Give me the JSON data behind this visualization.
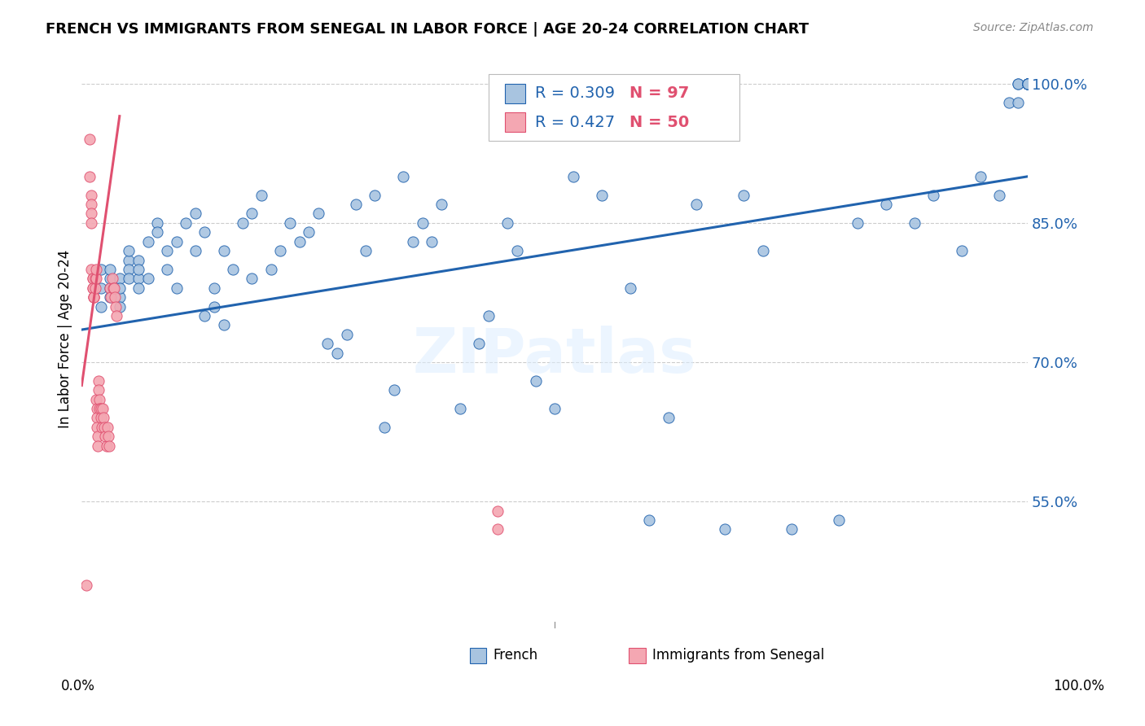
{
  "title": "FRENCH VS IMMIGRANTS FROM SENEGAL IN LABOR FORCE | AGE 20-24 CORRELATION CHART",
  "source": "Source: ZipAtlas.com",
  "ylabel": "In Labor Force | Age 20-24",
  "ytick_labels": [
    "100.0%",
    "85.0%",
    "70.0%",
    "55.0%"
  ],
  "ytick_values": [
    1.0,
    0.85,
    0.7,
    0.55
  ],
  "xlim": [
    0.0,
    1.0
  ],
  "ylim": [
    0.42,
    1.03
  ],
  "legend_blue_r": "0.309",
  "legend_blue_n": "97",
  "legend_pink_r": "0.427",
  "legend_pink_n": "50",
  "legend_blue_label": "French",
  "legend_pink_label": "Immigrants from Senegal",
  "blue_color": "#a8c4e0",
  "blue_edge_color": "#2163ae",
  "pink_color": "#f4a7b2",
  "pink_edge_color": "#e05070",
  "blue_line_color": "#2163ae",
  "pink_line_color": "#e05070",
  "blue_scatter_x": [
    0.02,
    0.02,
    0.02,
    0.03,
    0.03,
    0.03,
    0.03,
    0.04,
    0.04,
    0.04,
    0.04,
    0.05,
    0.05,
    0.05,
    0.05,
    0.06,
    0.06,
    0.06,
    0.06,
    0.07,
    0.07,
    0.08,
    0.08,
    0.09,
    0.09,
    0.1,
    0.1,
    0.11,
    0.12,
    0.12,
    0.13,
    0.13,
    0.14,
    0.14,
    0.15,
    0.15,
    0.16,
    0.17,
    0.18,
    0.18,
    0.19,
    0.2,
    0.21,
    0.22,
    0.23,
    0.24,
    0.25,
    0.26,
    0.27,
    0.28,
    0.29,
    0.3,
    0.31,
    0.32,
    0.33,
    0.34,
    0.35,
    0.36,
    0.37,
    0.38,
    0.4,
    0.42,
    0.43,
    0.45,
    0.46,
    0.48,
    0.5,
    0.52,
    0.55,
    0.58,
    0.6,
    0.62,
    0.65,
    0.68,
    0.7,
    0.72,
    0.75,
    0.8,
    0.82,
    0.85,
    0.88,
    0.9,
    0.93,
    0.95,
    0.97,
    0.98,
    0.99,
    0.99,
    0.99,
    1.0,
    1.0,
    1.0,
    1.0,
    1.0,
    1.0,
    1.0,
    1.0
  ],
  "blue_scatter_y": [
    0.78,
    0.8,
    0.76,
    0.78,
    0.79,
    0.77,
    0.8,
    0.77,
    0.79,
    0.78,
    0.76,
    0.81,
    0.8,
    0.79,
    0.82,
    0.81,
    0.79,
    0.8,
    0.78,
    0.83,
    0.79,
    0.85,
    0.84,
    0.82,
    0.8,
    0.83,
    0.78,
    0.85,
    0.82,
    0.86,
    0.84,
    0.75,
    0.76,
    0.78,
    0.82,
    0.74,
    0.8,
    0.85,
    0.86,
    0.79,
    0.88,
    0.8,
    0.82,
    0.85,
    0.83,
    0.84,
    0.86,
    0.72,
    0.71,
    0.73,
    0.87,
    0.82,
    0.88,
    0.63,
    0.67,
    0.9,
    0.83,
    0.85,
    0.83,
    0.87,
    0.65,
    0.72,
    0.75,
    0.85,
    0.82,
    0.68,
    0.65,
    0.9,
    0.88,
    0.78,
    0.53,
    0.64,
    0.87,
    0.52,
    0.88,
    0.82,
    0.52,
    0.53,
    0.85,
    0.87,
    0.85,
    0.88,
    0.82,
    0.9,
    0.88,
    0.98,
    0.98,
    1.0,
    1.0,
    1.0,
    1.0,
    1.0,
    1.0,
    1.0,
    1.0,
    1.0,
    1.0
  ],
  "pink_scatter_x": [
    0.005,
    0.008,
    0.008,
    0.01,
    0.01,
    0.01,
    0.01,
    0.01,
    0.012,
    0.012,
    0.012,
    0.012,
    0.013,
    0.013,
    0.013,
    0.014,
    0.014,
    0.015,
    0.015,
    0.015,
    0.016,
    0.016,
    0.016,
    0.017,
    0.017,
    0.018,
    0.018,
    0.019,
    0.019,
    0.02,
    0.02,
    0.021,
    0.022,
    0.023,
    0.024,
    0.025,
    0.026,
    0.027,
    0.028,
    0.029,
    0.03,
    0.031,
    0.032,
    0.033,
    0.034,
    0.035,
    0.036,
    0.037,
    0.44,
    0.44
  ],
  "pink_scatter_y": [
    0.46,
    0.94,
    0.9,
    0.88,
    0.87,
    0.86,
    0.85,
    0.8,
    0.79,
    0.79,
    0.78,
    0.78,
    0.77,
    0.77,
    0.77,
    0.78,
    0.79,
    0.79,
    0.8,
    0.66,
    0.65,
    0.64,
    0.63,
    0.62,
    0.61,
    0.68,
    0.67,
    0.66,
    0.65,
    0.65,
    0.64,
    0.63,
    0.65,
    0.64,
    0.63,
    0.62,
    0.61,
    0.63,
    0.62,
    0.61,
    0.78,
    0.77,
    0.79,
    0.78,
    0.78,
    0.77,
    0.76,
    0.75,
    0.52,
    0.54
  ],
  "blue_trend_x": [
    0.0,
    1.0
  ],
  "blue_trend_y": [
    0.735,
    0.9
  ],
  "pink_trend_x": [
    0.0,
    0.04
  ],
  "pink_trend_y": [
    0.675,
    0.965
  ],
  "watermark": "ZIPatlas",
  "background_color": "#ffffff",
  "grid_color": "#cccccc",
  "rn_label_color": "#2163ae",
  "n_value_color": "#e05070"
}
